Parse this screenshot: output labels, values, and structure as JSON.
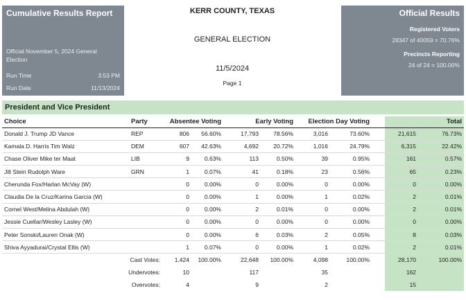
{
  "header_left": {
    "title": "Cumulative Results Report",
    "election_desc": "Official November 5, 2024 General Election",
    "run_time_label": "Run Time",
    "run_time": "3:53 PM",
    "run_date_label": "Run Date",
    "run_date": "11/13/2024"
  },
  "header_center": {
    "county": "KERR COUNTY, TEXAS",
    "election": "GENERAL ELECTION",
    "date": "11/5/2024",
    "page": "Page 1"
  },
  "header_right": {
    "title": "Official Results",
    "registered_label": "Registered Voters",
    "registered_value": "28347 of 40059 = 70.76%",
    "precincts_label": "Precincts Reporting",
    "precincts_value": "24 of 24 = 100.00%"
  },
  "race": {
    "title": "President and Vice President",
    "columns": {
      "choice": "Choice",
      "party": "Party",
      "absentee": "Absentee Voting",
      "early": "Early Voting",
      "election_day": "Election Day Voting",
      "total": "Total"
    },
    "candidates": [
      {
        "choice": "Donald J. Trump JD Vance",
        "party": "REP",
        "abs_v": "806",
        "abs_p": "56.60%",
        "early_v": "17,793",
        "early_p": "78.56%",
        "ed_v": "3,016",
        "ed_p": "73.60%",
        "tot_v": "21,615",
        "tot_p": "76.73%"
      },
      {
        "choice": "Kamala D. Harris Tim Walz",
        "party": "DEM",
        "abs_v": "607",
        "abs_p": "42.63%",
        "early_v": "4,692",
        "early_p": "20.72%",
        "ed_v": "1,016",
        "ed_p": "24.79%",
        "tot_v": "6,315",
        "tot_p": "22.42%"
      },
      {
        "choice": "Chase Oliver Mike ter Maat",
        "party": "LIB",
        "abs_v": "9",
        "abs_p": "0.63%",
        "early_v": "113",
        "early_p": "0.50%",
        "ed_v": "39",
        "ed_p": "0.95%",
        "tot_v": "161",
        "tot_p": "0.57%"
      },
      {
        "choice": "Jill Stein Rudolph Ware",
        "party": "GRN",
        "abs_v": "1",
        "abs_p": "0.07%",
        "early_v": "41",
        "early_p": "0.18%",
        "ed_v": "23",
        "ed_p": "0.56%",
        "tot_v": "65",
        "tot_p": "0.23%"
      },
      {
        "choice": "Cherunda Fox/Harlan McVay (W)",
        "party": "",
        "abs_v": "0",
        "abs_p": "0.00%",
        "early_v": "0",
        "early_p": "0.00%",
        "ed_v": "0",
        "ed_p": "0.00%",
        "tot_v": "0",
        "tot_p": "0.00%"
      },
      {
        "choice": "Claudia De la Cruz/Karina Garcia (W)",
        "party": "",
        "abs_v": "0",
        "abs_p": "0.00%",
        "early_v": "1",
        "early_p": "0.00%",
        "ed_v": "1",
        "ed_p": "0.02%",
        "tot_v": "2",
        "tot_p": "0.01%"
      },
      {
        "choice": "Cornel West/Melina Abdulah (W)",
        "party": "",
        "abs_v": "0",
        "abs_p": "0.00%",
        "early_v": "2",
        "early_p": "0.01%",
        "ed_v": "0",
        "ed_p": "0.00%",
        "tot_v": "2",
        "tot_p": "0.01%"
      },
      {
        "choice": "Jessie Cuellar/Wesley Lasley (W)",
        "party": "",
        "abs_v": "0",
        "abs_p": "0.00%",
        "early_v": "0",
        "early_p": "0.00%",
        "ed_v": "0",
        "ed_p": "0.00%",
        "tot_v": "0",
        "tot_p": "0.00%"
      },
      {
        "choice": "Peter Sonski/Lauren Onak (W)",
        "party": "",
        "abs_v": "0",
        "abs_p": "0.00%",
        "early_v": "6",
        "early_p": "0.03%",
        "ed_v": "2",
        "ed_p": "0.05%",
        "tot_v": "8",
        "tot_p": "0.03%"
      },
      {
        "choice": "Shiva Ayyadurai/Crystal Ellis (W)",
        "party": "",
        "abs_v": "1",
        "abs_p": "0.07%",
        "early_v": "0",
        "early_p": "0.00%",
        "ed_v": "1",
        "ed_p": "0.02%",
        "tot_v": "2",
        "tot_p": "0.01%"
      }
    ],
    "cast": {
      "label": "Cast Votes:",
      "abs_v": "1,424",
      "abs_p": "100.00%",
      "early_v": "22,648",
      "early_p": "100.00%",
      "ed_v": "4,098",
      "ed_p": "100.00%",
      "tot_v": "28,170",
      "tot_p": "100.00%"
    },
    "under": {
      "label": "Undervotes:",
      "abs_v": "10",
      "early_v": "117",
      "ed_v": "35",
      "tot_v": "162"
    },
    "over": {
      "label": "Overvotes:",
      "abs_v": "4",
      "early_v": "9",
      "ed_v": "2",
      "tot_v": "15"
    }
  }
}
